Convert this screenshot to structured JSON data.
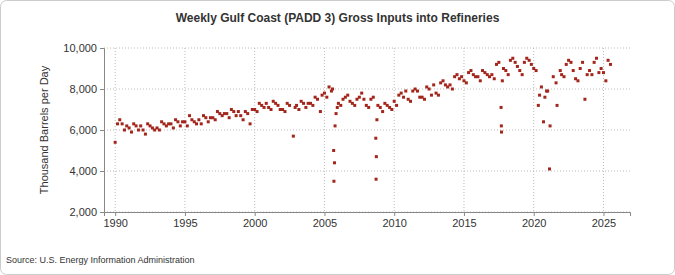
{
  "chart_data": {
    "type": "scatter",
    "title": "Weekly Gulf Coast (PADD 3) Gross Inputs into Refineries",
    "y_label": "Thousand Barrels per Day",
    "source": "Source: U.S. Energy Information Administration",
    "color": "#a3261c",
    "marker": "square",
    "grid": true,
    "xlim": [
      1989.2,
      2026.9
    ],
    "xticks": [
      1990,
      1995,
      2000,
      2005,
      2010,
      2015,
      2020,
      2025
    ],
    "ylim": [
      2000,
      10000
    ],
    "yticks": [
      {
        "value": 2000,
        "label": "2,000"
      },
      {
        "value": 4000,
        "label": "4,000"
      },
      {
        "value": 6000,
        "label": "6,000"
      },
      {
        "value": 8000,
        "label": "8,000"
      },
      {
        "value": 10000,
        "label": "10,000"
      }
    ],
    "x": [
      1990,
      1990.17,
      1990.33,
      1990.5,
      1990.67,
      1990.83,
      1991,
      1991.17,
      1991.33,
      1991.5,
      1991.67,
      1991.83,
      1992,
      1992.17,
      1992.33,
      1992.5,
      1992.67,
      1992.83,
      1993,
      1993.17,
      1993.33,
      1993.5,
      1993.67,
      1993.83,
      1994,
      1994.17,
      1994.33,
      1994.5,
      1994.67,
      1994.83,
      1995,
      1995.17,
      1995.33,
      1995.5,
      1995.67,
      1995.83,
      1996,
      1996.17,
      1996.33,
      1996.5,
      1996.67,
      1996.83,
      1997,
      1997.17,
      1997.33,
      1997.5,
      1997.67,
      1997.83,
      1998,
      1998.17,
      1998.33,
      1998.5,
      1998.67,
      1998.83,
      1999,
      1999.17,
      1999.33,
      1999.5,
      1999.67,
      1999.83,
      2000,
      2000.17,
      2000.33,
      2000.5,
      2000.67,
      2000.83,
      2001,
      2001.17,
      2001.33,
      2001.5,
      2001.67,
      2001.83,
      2002,
      2002.17,
      2002.33,
      2002.5,
      2002.77,
      2002.9,
      2003,
      2003.17,
      2003.33,
      2003.5,
      2003.67,
      2003.83,
      2004,
      2004.17,
      2004.33,
      2004.5,
      2004.71,
      2004.83,
      2005,
      2005.17,
      2005.33,
      2005.5,
      2005.58,
      2005.66,
      2005.68,
      2005.72,
      2005.76,
      2005.83,
      2005.92,
      2006,
      2006.17,
      2006.33,
      2006.5,
      2006.67,
      2006.83,
      2007,
      2007.17,
      2007.33,
      2007.5,
      2007.67,
      2007.83,
      2008,
      2008.17,
      2008.33,
      2008.5,
      2008.68,
      2008.7,
      2008.72,
      2008.76,
      2008.83,
      2009,
      2009.17,
      2009.33,
      2009.5,
      2009.67,
      2009.83,
      2010,
      2010.17,
      2010.33,
      2010.5,
      2010.67,
      2010.83,
      2011,
      2011.17,
      2011.33,
      2011.5,
      2011.67,
      2011.83,
      2012,
      2012.17,
      2012.33,
      2012.5,
      2012.67,
      2012.83,
      2013,
      2013.17,
      2013.33,
      2013.5,
      2013.67,
      2013.83,
      2014,
      2014.17,
      2014.33,
      2014.5,
      2014.67,
      2014.83,
      2015,
      2015.17,
      2015.33,
      2015.5,
      2015.67,
      2015.83,
      2016,
      2016.17,
      2016.33,
      2016.5,
      2016.67,
      2016.83,
      2017,
      2017.17,
      2017.33,
      2017.5,
      2017.66,
      2017.68,
      2017.69,
      2017.75,
      2017.83,
      2018,
      2018.17,
      2018.33,
      2018.5,
      2018.67,
      2018.83,
      2019,
      2019.17,
      2019.33,
      2019.5,
      2019.67,
      2019.83,
      2020,
      2020.17,
      2020.33,
      2020.42,
      2020.55,
      2020.7,
      2020.8,
      2020.92,
      2021,
      2021.13,
      2021.17,
      2021.4,
      2021.6,
      2021.67,
      2021.9,
      2022,
      2022.17,
      2022.33,
      2022.5,
      2022.67,
      2022.83,
      2023,
      2023.17,
      2023.33,
      2023.5,
      2023.67,
      2023.83,
      2024,
      2024.17,
      2024.33,
      2024.5,
      2024.67,
      2024.83,
      2025,
      2025.17,
      2025.33,
      2025.5
    ],
    "values": [
      5400,
      6300,
      6500,
      6300,
      6000,
      6200,
      6100,
      5900,
      6300,
      6200,
      6000,
      6200,
      6000,
      5800,
      6300,
      6200,
      6100,
      6000,
      6100,
      6000,
      6400,
      6300,
      6200,
      6300,
      6300,
      6100,
      6500,
      6400,
      6200,
      6400,
      6400,
      6200,
      6700,
      6500,
      6400,
      6300,
      6500,
      6300,
      6700,
      6600,
      6400,
      6600,
      6600,
      6500,
      6900,
      6800,
      6700,
      6800,
      6800,
      6600,
      7000,
      6900,
      6700,
      6900,
      6700,
      6500,
      6900,
      6800,
      6300,
      7000,
      7000,
      6900,
      7300,
      7200,
      7100,
      7300,
      7100,
      7000,
      7400,
      7300,
      7200,
      7000,
      7000,
      6900,
      7300,
      7200,
      5700,
      7100,
      7200,
      7000,
      7400,
      7300,
      7100,
      7300,
      7300,
      7200,
      7600,
      7500,
      6900,
      7700,
      7800,
      7600,
      8100,
      7900,
      8000,
      5000,
      3500,
      4400,
      6200,
      6800,
      7100,
      7300,
      7200,
      7500,
      7600,
      7700,
      7400,
      7300,
      7200,
      7500,
      7600,
      7800,
      7500,
      7200,
      7100,
      7500,
      7600,
      5600,
      3600,
      4700,
      6500,
      7200,
      7100,
      6900,
      7300,
      7200,
      7100,
      7000,
      7400,
      7200,
      7700,
      7800,
      7600,
      7900,
      7500,
      7400,
      7900,
      8000,
      7900,
      7600,
      7600,
      7500,
      8100,
      8000,
      7700,
      8200,
      7800,
      7700,
      8300,
      8400,
      8200,
      8100,
      8200,
      8000,
      8600,
      8700,
      8500,
      8600,
      8400,
      8300,
      8800,
      8900,
      8700,
      8600,
      8600,
      8400,
      8900,
      8800,
      8700,
      8600,
      8700,
      8500,
      9200,
      9300,
      7100,
      6200,
      5900,
      8400,
      9000,
      8900,
      8700,
      9400,
      9500,
      9300,
      9100,
      8900,
      8700,
      9300,
      9500,
      9400,
      9200,
      9000,
      8900,
      7200,
      7700,
      8100,
      6400,
      7600,
      7900,
      7900,
      4100,
      6200,
      8600,
      8300,
      7200,
      8900,
      8700,
      8600,
      9200,
      9400,
      9300,
      8900,
      8500,
      8400,
      9000,
      9300,
      7500,
      8700,
      8900,
      8700,
      9300,
      9500,
      8800,
      9000,
      8800,
      8400,
      9400,
      9200
    ]
  }
}
